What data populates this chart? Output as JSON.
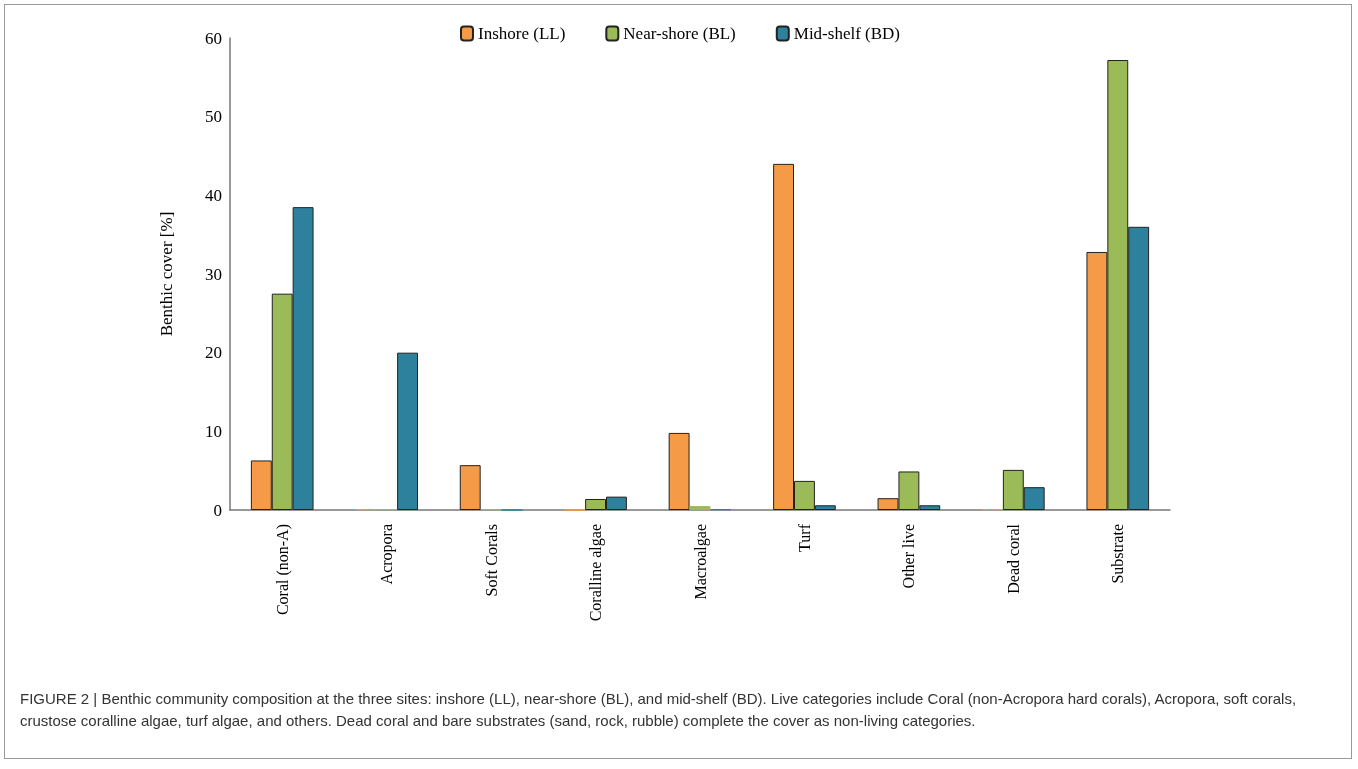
{
  "chart_data": {
    "type": "bar",
    "ylabel": "Benthic cover [%]",
    "categories": [
      "Coral (non-A)",
      "Acropora",
      "Soft Corals",
      "Coralline algae",
      "Macroalgae",
      "Turf",
      "Other live",
      "Dead coral",
      "Substrate"
    ],
    "series": [
      {
        "name": "Inshore (LL)",
        "color": "#f59a46",
        "values": [
          6.3,
          0.1,
          5.7,
          0,
          9.8,
          44,
          1.5,
          0.1,
          32.8
        ]
      },
      {
        "name": "Near-shore (BL)",
        "color": "#9bbb59",
        "values": [
          27.5,
          0.1,
          0.1,
          1.4,
          0.5,
          3.7,
          4.9,
          5.1,
          57.2
        ]
      },
      {
        "name": "Mid-shelf (BD)",
        "color": "#2e819c",
        "values": [
          38.5,
          20,
          0,
          1.7,
          0.1,
          0.6,
          0.6,
          2.9,
          36
        ]
      }
    ],
    "ylim": [
      0,
      60
    ],
    "yticks": [
      0,
      10,
      20,
      30,
      40,
      50,
      60
    ],
    "grid": false,
    "legend": "top",
    "annotations": [
      "FIGURE 2 | Benthic community composition at the three sites: inshore (LL), near-shore (BL), and mid-shelf (BD). Live categories include Coral (non-Acropora hard corals), Acropora, soft corals, crustose coralline algae, turf algae, and others. Dead coral and bare substrates (sand, rock, rubble) complete the cover as non-living categories."
    ]
  }
}
